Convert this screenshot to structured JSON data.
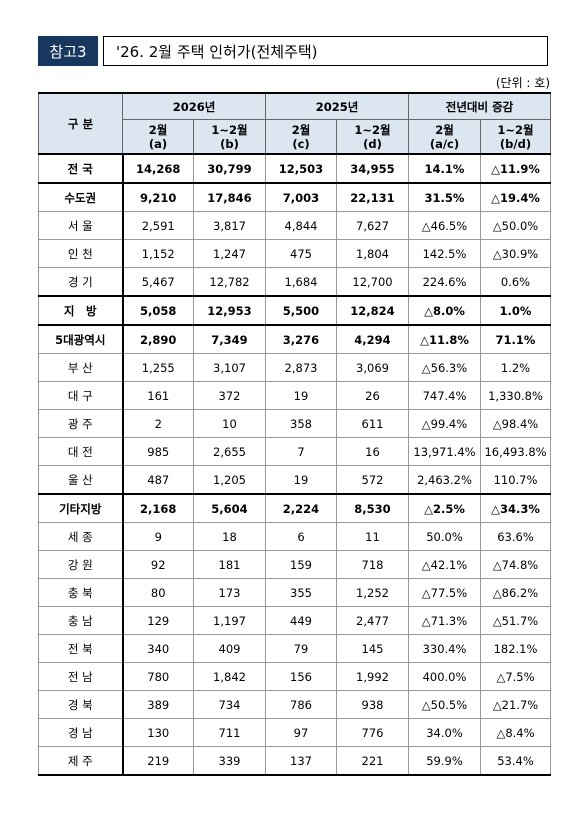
{
  "header": {
    "tag": "참고3",
    "title": "'26. 2월 주택 인허가(전체주택)"
  },
  "unit": "(단위 : 호)",
  "table": {
    "corner": "구 분",
    "groups": [
      "2026년",
      "2025년",
      "전년대비 증감"
    ],
    "subheads": [
      [
        "2월",
        "(a)"
      ],
      [
        "1~2월",
        "(b)"
      ],
      [
        "2월",
        "(c)"
      ],
      [
        "1~2월",
        "(d)"
      ],
      [
        "2월",
        "(a/c)"
      ],
      [
        "1~2월",
        "(b/d)"
      ]
    ],
    "rows": [
      [
        "전 국",
        "14,268",
        "30,799",
        "12,503",
        "34,955",
        "14.1%",
        "△11.9%"
      ],
      [
        "수도권",
        "9,210",
        "17,846",
        "7,003",
        "22,131",
        "31.5%",
        "△19.4%"
      ],
      [
        "서 울",
        "2,591",
        "3,817",
        "4,844",
        "7,627",
        "△46.5%",
        "△50.0%"
      ],
      [
        "인 천",
        "1,152",
        "1,247",
        "475",
        "1,804",
        "142.5%",
        "△30.9%"
      ],
      [
        "경 기",
        "5,467",
        "12,782",
        "1,684",
        "12,700",
        "224.6%",
        "0.6%"
      ],
      [
        "지　방",
        "5,058",
        "12,953",
        "5,500",
        "12,824",
        "△8.0%",
        "1.0%"
      ],
      [
        "5대광역시",
        "2,890",
        "7,349",
        "3,276",
        "4,294",
        "△11.8%",
        "71.1%"
      ],
      [
        "부 산",
        "1,255",
        "3,107",
        "2,873",
        "3,069",
        "△56.3%",
        "1.2%"
      ],
      [
        "대 구",
        "161",
        "372",
        "19",
        "26",
        "747.4%",
        "1,330.8%"
      ],
      [
        "광 주",
        "2",
        "10",
        "358",
        "611",
        "△99.4%",
        "△98.4%"
      ],
      [
        "대 전",
        "985",
        "2,655",
        "7",
        "16",
        "13,971.4%",
        "16,493.8%"
      ],
      [
        "울 산",
        "487",
        "1,205",
        "19",
        "572",
        "2,463.2%",
        "110.7%"
      ],
      [
        "기타지방",
        "2,168",
        "5,604",
        "2,224",
        "8,530",
        "△2.5%",
        "△34.3%"
      ],
      [
        "세 종",
        "9",
        "18",
        "6",
        "11",
        "50.0%",
        "63.6%"
      ],
      [
        "강 원",
        "92",
        "181",
        "159",
        "718",
        "△42.1%",
        "△74.8%"
      ],
      [
        "충 북",
        "80",
        "173",
        "355",
        "1,252",
        "△77.5%",
        "△86.2%"
      ],
      [
        "충 남",
        "129",
        "1,197",
        "449",
        "2,477",
        "△71.3%",
        "△51.7%"
      ],
      [
        "전 북",
        "340",
        "409",
        "79",
        "145",
        "330.4%",
        "182.1%"
      ],
      [
        "전 남",
        "780",
        "1,842",
        "156",
        "1,992",
        "400.0%",
        "△7.5%"
      ],
      [
        "경 북",
        "389",
        "734",
        "786",
        "938",
        "△50.5%",
        "△21.7%"
      ],
      [
        "경 남",
        "130",
        "711",
        "97",
        "776",
        "34.0%",
        "△8.4%"
      ],
      [
        "제 주",
        "219",
        "339",
        "137",
        "221",
        "59.9%",
        "53.4%"
      ]
    ]
  }
}
